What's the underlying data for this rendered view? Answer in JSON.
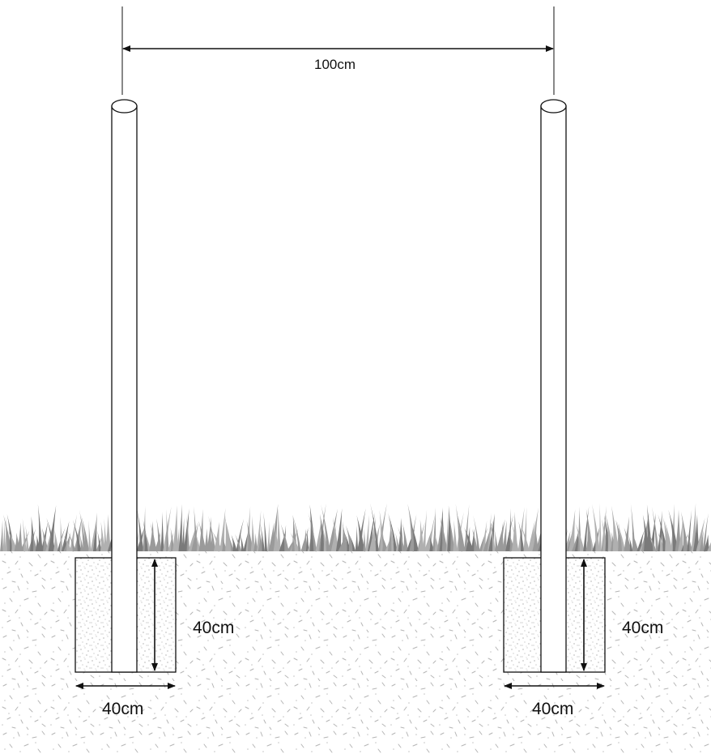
{
  "diagram": {
    "span_label": "100cm",
    "left_footing": {
      "depth_label": "40cm",
      "width_label": "40cm"
    },
    "right_footing": {
      "depth_label": "40cm",
      "width_label": "40cm"
    }
  },
  "colors": {
    "line": "#111111",
    "grass": "#9a9a9a",
    "grass_dark": "#7a7a7a",
    "soil_speck": "#b5b5b5",
    "concrete_speck": "#8c8c8c"
  }
}
